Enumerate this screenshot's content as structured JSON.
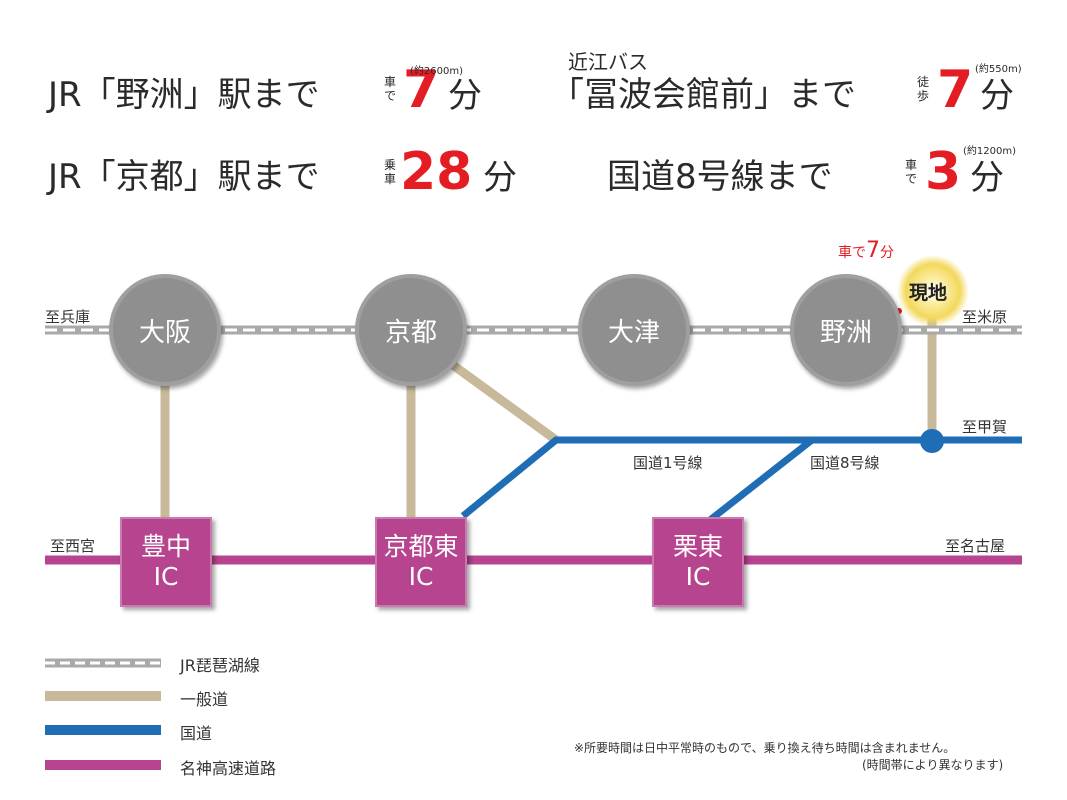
{
  "header": {
    "r1l": {
      "pre": "JR「野洲」駅まで",
      "mode": "車で",
      "num": "7",
      "unit": "分",
      "note": "(約2600m)"
    },
    "r1r": {
      "sub": "近江バス",
      "pre": "「冨波会館前」まで",
      "mode": "徒歩",
      "num": "7",
      "unit": "分",
      "note": "(約550m)"
    },
    "r2l": {
      "pre": "JR「京都」駅まで",
      "mode": "乗車",
      "num": "28",
      "unit": "分"
    },
    "r2r": {
      "pre": "国道8号線まで",
      "mode": "車で",
      "num": "3",
      "unit": "分",
      "note": "(約1200m)"
    }
  },
  "map": {
    "stations": [
      "大阪",
      "京都",
      "大津",
      "野洲"
    ],
    "current": "現地",
    "car_prefix": "車で",
    "car_num": "7",
    "car_unit": "分",
    "ics": [
      "豊中\nIC",
      "京都東\nIC",
      "栗東\nIC"
    ],
    "edges": {
      "west_rail": "至兵庫",
      "east_rail": "至米原",
      "east_road": "至甲賀",
      "west_exp": "至西宮",
      "east_exp": "至名古屋"
    },
    "roads": [
      "国道1号線",
      "国道8号線"
    ]
  },
  "legend": [
    "JR琵琶湖線",
    "一般道",
    "国道",
    "名神高速道路"
  ],
  "footnote": {
    "line1": "※所要時間は日中平常時のもので、乗り換え待ち時間は含まれません。",
    "line2": "(時間帯により異なります)"
  },
  "colors": {
    "rail": "#a9a9a9",
    "general_road": "#c8b99a",
    "national_road": "#1e6db5",
    "expressway": "#b6448e",
    "accent": "#e31d23",
    "current_glow": "#f5df6e"
  },
  "icons": [
    "current-location-marker-icon"
  ]
}
